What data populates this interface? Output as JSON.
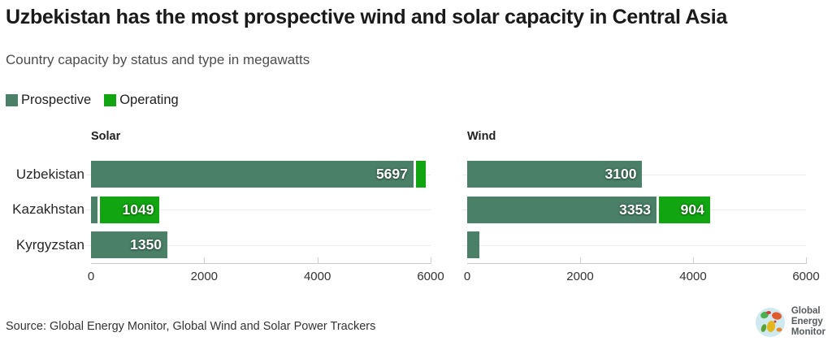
{
  "header": {
    "title": "Uzbekistan has the most prospective wind and solar capacity in Central Asia",
    "subtitle": "Country capacity by status and type in megawatts"
  },
  "legend": {
    "items": [
      {
        "label": "Prospective",
        "color": "#4a8068"
      },
      {
        "label": "Operating",
        "color": "#12a512"
      }
    ]
  },
  "chart_data": {
    "type": "bar",
    "orientation": "horizontal",
    "stacked": true,
    "categories": [
      "Uzbekistan",
      "Kazakhstan",
      "Kyrgyzstan"
    ],
    "xlim": [
      0,
      6000
    ],
    "x_ticks": [
      0,
      2000,
      4000,
      6000
    ],
    "grid": "horizontal-row-lines",
    "legend_position": "top-left",
    "series_colors": {
      "Prospective": "#4a8068",
      "Operating": "#12a512"
    },
    "panels": [
      {
        "title": "Solar",
        "series": [
          {
            "name": "Prospective",
            "values": [
              5697,
              120,
              1350
            ],
            "labels": [
              "5697",
              "",
              "1350"
            ]
          },
          {
            "name": "Operating",
            "values": [
              175,
              1049,
              0
            ],
            "labels": [
              "",
              "1049",
              ""
            ]
          }
        ]
      },
      {
        "title": "Wind",
        "series": [
          {
            "name": "Prospective",
            "values": [
              3100,
              3353,
              210
            ],
            "labels": [
              "3100",
              "3353",
              ""
            ]
          },
          {
            "name": "Operating",
            "values": [
              0,
              904,
              0
            ],
            "labels": [
              "",
              "904",
              ""
            ]
          }
        ]
      }
    ]
  },
  "footer": {
    "source": "Source: Global Energy Monitor, Global Wind and Solar Power Trackers"
  },
  "logo": {
    "lines": [
      "Global",
      "Energy",
      "Monitor"
    ]
  }
}
